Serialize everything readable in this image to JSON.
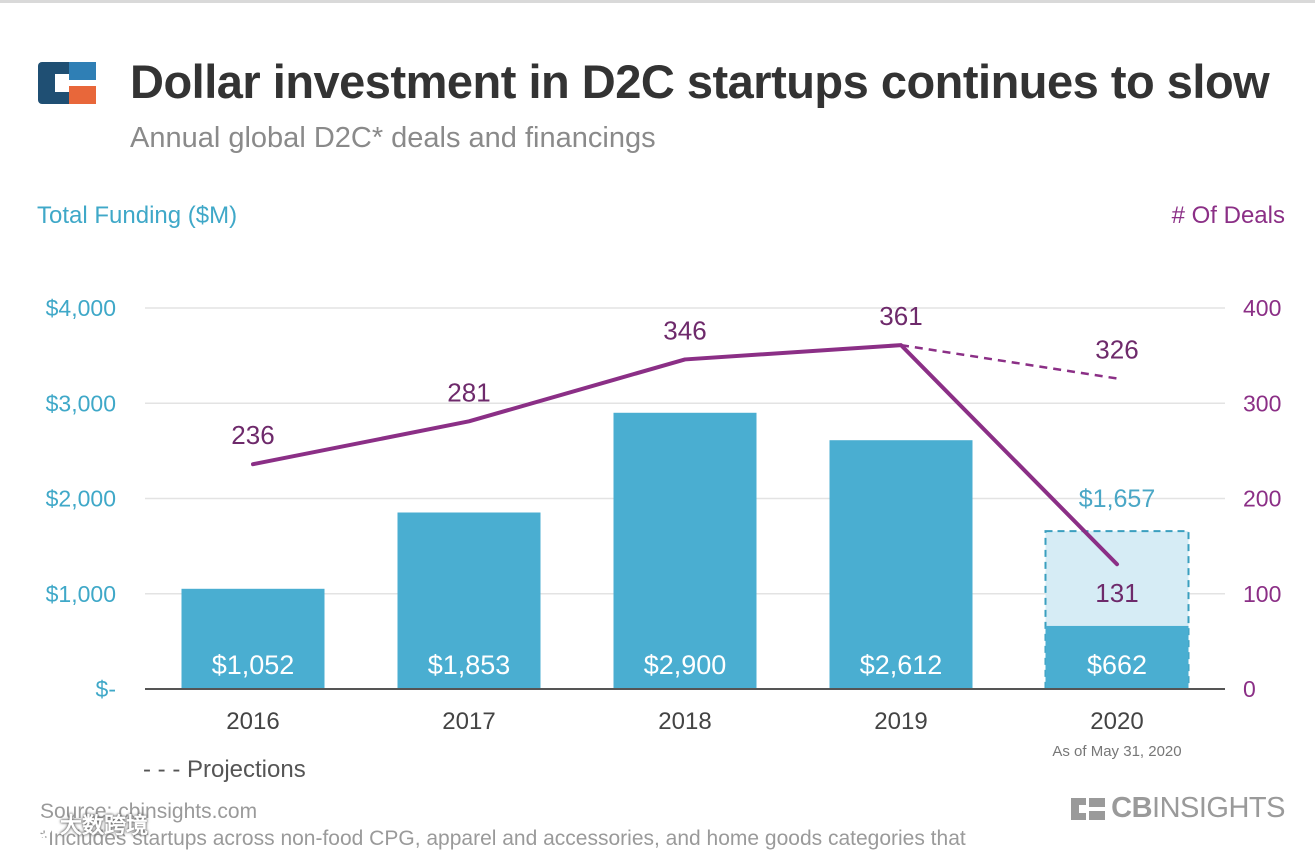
{
  "header": {
    "title": "Dollar investment in D2C startups continues to slow",
    "subtitle": "Annual global D2C* deals and financings"
  },
  "colors": {
    "bar": "#4aaed1",
    "bar_projection": "#d6ecf5",
    "line": "#8b2f86",
    "left_axis": "#3fa8c8",
    "grid": "#e3e3e3",
    "text_dark": "#333333"
  },
  "icons": {
    "logo": "cb-insights-logo-icon",
    "brand": "cb-insights-mark-icon",
    "watermark": "wechat-icon"
  },
  "legend": {
    "projections_label": "Projections"
  },
  "footer": {
    "source": "Source: cbinsights.com",
    "footnote": "*Includes startups across non-food CPG, apparel and accessories, and home goods categories that",
    "brand_bold": "CB",
    "brand_thin": "INSIGHTS",
    "watermark_text": "大数跨境"
  },
  "chart_data": {
    "type": "bar",
    "categories": [
      "2016",
      "2017",
      "2018",
      "2019",
      "2020"
    ],
    "category_notes": [
      "",
      "",
      "",
      "",
      "As of May 31, 2020"
    ],
    "ylabel": "Total Funding ($M)",
    "y2label": "# Of Deals",
    "ylim": [
      0,
      4000
    ],
    "y2lim": [
      0,
      400
    ],
    "yticks": [
      "$-",
      "$1,000",
      "$2,000",
      "$3,000",
      "$4,000"
    ],
    "y2ticks": [
      "0",
      "100",
      "200",
      "300",
      "400"
    ],
    "series": [
      {
        "name": "Total Funding ($M)",
        "type": "bar",
        "axis": "left",
        "values": [
          1052,
          1853,
          2900,
          2612,
          662
        ],
        "labels": [
          "$1,052",
          "$1,853",
          "$2,900",
          "$2,612",
          "$662"
        ]
      },
      {
        "name": "Total Funding ($M) Projections",
        "type": "bar",
        "axis": "left",
        "projection": true,
        "values": [
          null,
          null,
          null,
          null,
          1657
        ],
        "labels": [
          "",
          "",
          "",
          "",
          "$1,657"
        ]
      },
      {
        "name": "# Of Deals",
        "type": "line",
        "axis": "right",
        "values": [
          236,
          281,
          346,
          361,
          131
        ],
        "labels": [
          "236",
          "281",
          "346",
          "361",
          "131"
        ]
      },
      {
        "name": "# Of Deals Projections",
        "type": "line",
        "axis": "right",
        "projection": true,
        "values": [
          null,
          null,
          null,
          361,
          326
        ],
        "labels": [
          "",
          "",
          "",
          "",
          "326"
        ]
      }
    ],
    "grid": true
  }
}
